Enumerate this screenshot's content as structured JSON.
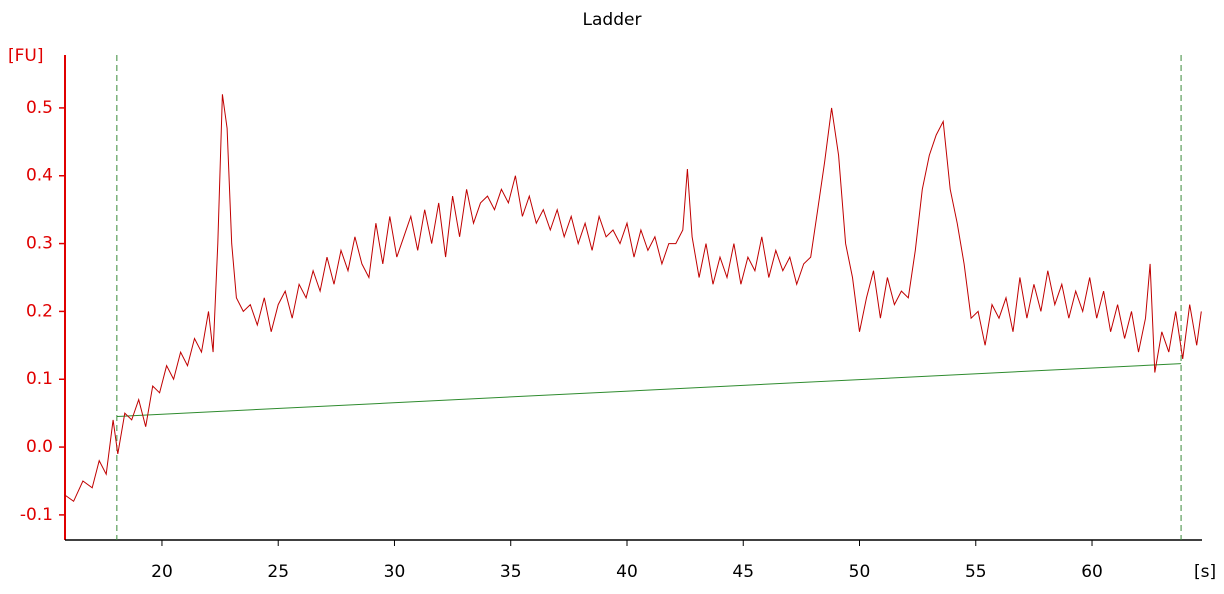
{
  "chart_data": {
    "type": "line",
    "title": "Ladder",
    "y_label": "[FU]",
    "x_label": "[s]",
    "xlim": [
      15.83,
      64.73
    ],
    "ylim": [
      -0.137,
      0.578
    ],
    "xticks": [
      20,
      25,
      30,
      35,
      40,
      45,
      50,
      55,
      60
    ],
    "yticks": [
      -0.1,
      {
        "value": 0,
        "label": "0.0"
      },
      0.1,
      0.2,
      0.3,
      0.4,
      0.5
    ],
    "vlines": [
      18.06,
      63.83
    ],
    "vline_color": "#3a8a3a",
    "x": [
      15.8,
      16.2,
      16.6,
      17.0,
      17.3,
      17.6,
      17.9,
      18.1,
      18.4,
      18.7,
      19.0,
      19.3,
      19.6,
      19.9,
      20.2,
      20.5,
      20.8,
      21.1,
      21.4,
      21.7,
      22.0,
      22.2,
      22.4,
      22.6,
      22.8,
      23.0,
      23.2,
      23.5,
      23.8,
      24.1,
      24.4,
      24.7,
      25.0,
      25.3,
      25.6,
      25.9,
      26.2,
      26.5,
      26.8,
      27.1,
      27.4,
      27.7,
      28.0,
      28.3,
      28.6,
      28.9,
      29.2,
      29.5,
      29.8,
      30.1,
      30.4,
      30.7,
      31.0,
      31.3,
      31.6,
      31.9,
      32.2,
      32.5,
      32.8,
      33.1,
      33.4,
      33.7,
      34.0,
      34.3,
      34.6,
      34.9,
      35.2,
      35.5,
      35.8,
      36.1,
      36.4,
      36.7,
      37.0,
      37.3,
      37.6,
      37.9,
      38.2,
      38.5,
      38.8,
      39.1,
      39.4,
      39.7,
      40.0,
      40.3,
      40.6,
      40.9,
      41.2,
      41.5,
      41.8,
      42.1,
      42.4,
      42.6,
      42.8,
      43.1,
      43.4,
      43.7,
      44.0,
      44.3,
      44.6,
      44.9,
      45.2,
      45.5,
      45.8,
      46.1,
      46.4,
      46.7,
      47.0,
      47.3,
      47.6,
      47.9,
      48.2,
      48.5,
      48.8,
      49.1,
      49.4,
      49.7,
      50.0,
      50.3,
      50.6,
      50.9,
      51.2,
      51.5,
      51.8,
      52.1,
      52.4,
      52.7,
      53.0,
      53.3,
      53.6,
      53.9,
      54.2,
      54.5,
      54.8,
      55.1,
      55.4,
      55.7,
      56.0,
      56.3,
      56.6,
      56.9,
      57.2,
      57.5,
      57.8,
      58.1,
      58.4,
      58.7,
      59.0,
      59.3,
      59.6,
      59.9,
      60.2,
      60.5,
      60.8,
      61.1,
      61.4,
      61.7,
      62.0,
      62.3,
      62.5,
      62.7,
      63.0,
      63.3,
      63.6,
      63.9,
      64.2,
      64.5,
      64.7
    ],
    "series": [
      {
        "color": "#c00000",
        "values": [
          -0.07,
          -0.08,
          -0.05,
          -0.06,
          -0.02,
          -0.04,
          0.04,
          -0.01,
          0.05,
          0.04,
          0.07,
          0.03,
          0.09,
          0.08,
          0.12,
          0.1,
          0.14,
          0.12,
          0.16,
          0.14,
          0.2,
          0.14,
          0.3,
          0.52,
          0.47,
          0.3,
          0.22,
          0.2,
          0.21,
          0.18,
          0.22,
          0.17,
          0.21,
          0.23,
          0.19,
          0.24,
          0.22,
          0.26,
          0.23,
          0.28,
          0.24,
          0.29,
          0.26,
          0.31,
          0.27,
          0.25,
          0.33,
          0.27,
          0.34,
          0.28,
          0.31,
          0.34,
          0.29,
          0.35,
          0.3,
          0.36,
          0.28,
          0.37,
          0.31,
          0.38,
          0.33,
          0.36,
          0.37,
          0.35,
          0.38,
          0.36,
          0.4,
          0.34,
          0.37,
          0.33,
          0.35,
          0.32,
          0.35,
          0.31,
          0.34,
          0.3,
          0.33,
          0.29,
          0.34,
          0.31,
          0.32,
          0.3,
          0.33,
          0.28,
          0.32,
          0.29,
          0.31,
          0.27,
          0.3,
          0.3,
          0.32,
          0.41,
          0.31,
          0.25,
          0.3,
          0.24,
          0.28,
          0.25,
          0.3,
          0.24,
          0.28,
          0.26,
          0.31,
          0.25,
          0.29,
          0.26,
          0.28,
          0.24,
          0.27,
          0.28,
          0.35,
          0.42,
          0.5,
          0.43,
          0.3,
          0.25,
          0.17,
          0.22,
          0.26,
          0.19,
          0.25,
          0.21,
          0.23,
          0.22,
          0.29,
          0.38,
          0.43,
          0.46,
          0.48,
          0.38,
          0.33,
          0.27,
          0.19,
          0.2,
          0.15,
          0.21,
          0.19,
          0.22,
          0.17,
          0.25,
          0.19,
          0.24,
          0.2,
          0.26,
          0.21,
          0.24,
          0.19,
          0.23,
          0.2,
          0.25,
          0.19,
          0.23,
          0.17,
          0.21,
          0.16,
          0.2,
          0.14,
          0.19,
          0.27,
          0.11,
          0.17,
          0.14,
          0.2,
          0.13,
          0.21,
          0.15,
          0.2
        ]
      }
    ],
    "baseline": {
      "color": "#2e8b2e",
      "x": [
        18.06,
        63.83
      ],
      "values": [
        0.045,
        0.123
      ]
    },
    "axis_color": "#e00000"
  }
}
